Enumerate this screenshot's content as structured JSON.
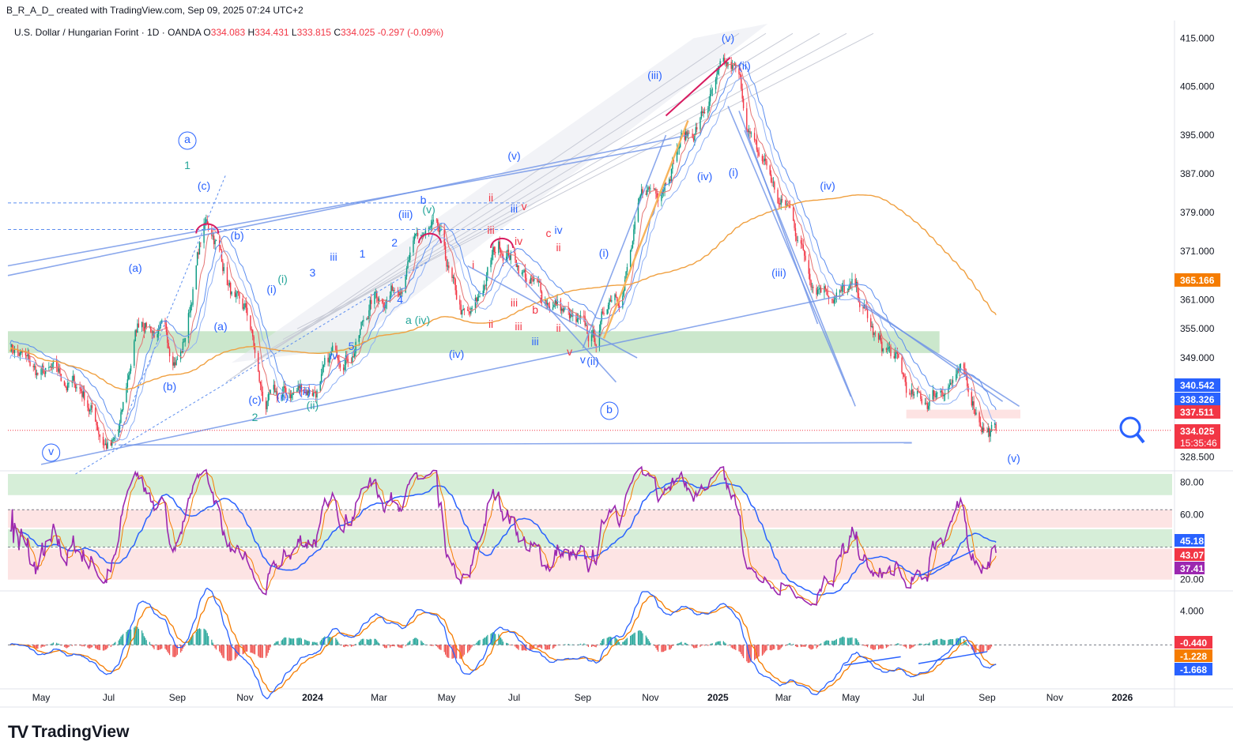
{
  "header": {
    "caption": "B_R_A_D_ created with TradingView.com, Sep 09, 2025 07:24 UTC+2",
    "symbol": "U.S. Dollar / Hungarian Forint · 1D · OANDA",
    "open_label": "O",
    "open": "334.083",
    "high_label": "H",
    "high": "334.431",
    "low_label": "L",
    "low": "333.815",
    "close_label": "C",
    "close": "334.025",
    "change": "-0.297 (-0.09%)"
  },
  "brand": {
    "logo_text": "TV",
    "name": "TradingView"
  },
  "colors": {
    "up": "#089981",
    "down": "#f23645",
    "blue": "#2962ff",
    "lightblue": "#5b8def",
    "orange": "#f0a040",
    "purple": "#9c27b0",
    "red": "#f23645",
    "green_zone": "#c8e6c9",
    "red_zone": "#fde0e0"
  },
  "chart_data": [
    {
      "type": "candlestick",
      "panel": "price",
      "title": "U.S. Dollar / Hungarian Forint · 1D · OANDA",
      "ylim": [
        326,
        418
      ],
      "y_ticks": [
        "415.000",
        "405.000",
        "395.000",
        "387.000",
        "379.000",
        "371.000",
        "365.166",
        "361.000",
        "355.000",
        "349.000",
        "340.542",
        "338.326",
        "337.511",
        "334.025",
        "328.500"
      ],
      "x_ticks": [
        "May",
        "Jul",
        "Sep",
        "Nov",
        "2024",
        "Mar",
        "May",
        "Jul",
        "Sep",
        "Nov",
        "2025",
        "Mar",
        "May",
        "Jul",
        "Sep",
        "Nov",
        "2026"
      ],
      "price_path": {
        "x": [
          "2023-04-01",
          "2023-05-01",
          "2023-06-01",
          "2023-07-05",
          "2023-08-01",
          "2023-09-01",
          "2023-09-28",
          "2023-11-01",
          "2023-11-20",
          "2024-01-01",
          "2024-02-01",
          "2024-03-01",
          "2024-04-16",
          "2024-05-20",
          "2024-06-20",
          "2024-08-01",
          "2024-09-10",
          "2024-10-01",
          "2024-11-01",
          "2024-12-01",
          "2025-01-13",
          "2025-02-10",
          "2025-03-01",
          "2025-04-01",
          "2025-05-01",
          "2025-06-01",
          "2025-07-01",
          "2025-08-01",
          "2025-09-09"
        ],
        "y": [
          352,
          345,
          343,
          331,
          357,
          350,
          376,
          357,
          339,
          343,
          351,
          362,
          374,
          356,
          372,
          361,
          352,
          364,
          383,
          395,
          407,
          389,
          380,
          366,
          362,
          350,
          339,
          345,
          334.025
        ]
      },
      "last_price": "334.025",
      "countdown": "15:35:46",
      "badges": [
        {
          "value": "365.166",
          "color": "#f57c00"
        },
        {
          "value": "340.542",
          "color": "#2962ff"
        },
        {
          "value": "338.326",
          "color": "#2962ff"
        },
        {
          "value": "337.511",
          "color": "#f23645"
        },
        {
          "value": "334.025",
          "color": "#f23645"
        }
      ],
      "zones": [
        {
          "kind": "green",
          "from": "2023-04-01",
          "to": "2025-07-20",
          "y_low": 350,
          "y_high": 354.5
        },
        {
          "kind": "red",
          "from": "2025-06-20",
          "to": "2025-10-01",
          "y_low": 336.5,
          "y_high": 338.3
        }
      ],
      "wave_labels": [
        "a",
        "1",
        "(c)",
        "(b)",
        "(a)",
        "(b)",
        "(a)",
        "(i)",
        "(i)",
        "(c)",
        "2",
        "(ii)",
        "(ii)",
        "(ii)",
        "v",
        "(iii)",
        "(v)",
        "b",
        "iii",
        "iv",
        "(iv)",
        "a (iv)",
        "iii",
        "ii",
        "i",
        "iv",
        "v",
        "c",
        "iv",
        "ii",
        "i",
        "iii",
        "iii",
        "ii",
        "b",
        "ii",
        "iii",
        "iii",
        "v",
        "v",
        "(ii)",
        "(i)",
        "b",
        "(iii)",
        "(v)",
        "(ii)",
        "(iv)",
        "(i)",
        "(v)",
        "(iv)",
        "(iii)",
        "(v)",
        "1",
        "2",
        "3",
        "4",
        "5"
      ]
    },
    {
      "type": "line",
      "panel": "rsi",
      "ylim": [
        15,
        85
      ],
      "y_ticks": [
        "80.00",
        "60.00",
        "20.00"
      ],
      "badges": [
        {
          "value": "45.18",
          "color": "#2962ff"
        },
        {
          "value": "43.07",
          "color": "#f23645"
        },
        {
          "value": "37.41",
          "color": "#9c27b0"
        }
      ],
      "zones": [
        {
          "kind": "green",
          "y_low": 72,
          "y_high": 85
        },
        {
          "kind": "red",
          "y_low": 52,
          "y_high": 63
        },
        {
          "kind": "green",
          "y_low": 40,
          "y_high": 51
        },
        {
          "kind": "red",
          "y_low": 20,
          "y_high": 39
        }
      ]
    },
    {
      "type": "bar",
      "panel": "macd",
      "ylim": [
        -5,
        6
      ],
      "y_ticks": [
        "4.000"
      ],
      "badges": [
        {
          "value": "-0.440",
          "color": "#f23645"
        },
        {
          "value": "-1.228",
          "color": "#f57c00"
        },
        {
          "value": "-1.668",
          "color": "#2962ff"
        }
      ]
    }
  ]
}
